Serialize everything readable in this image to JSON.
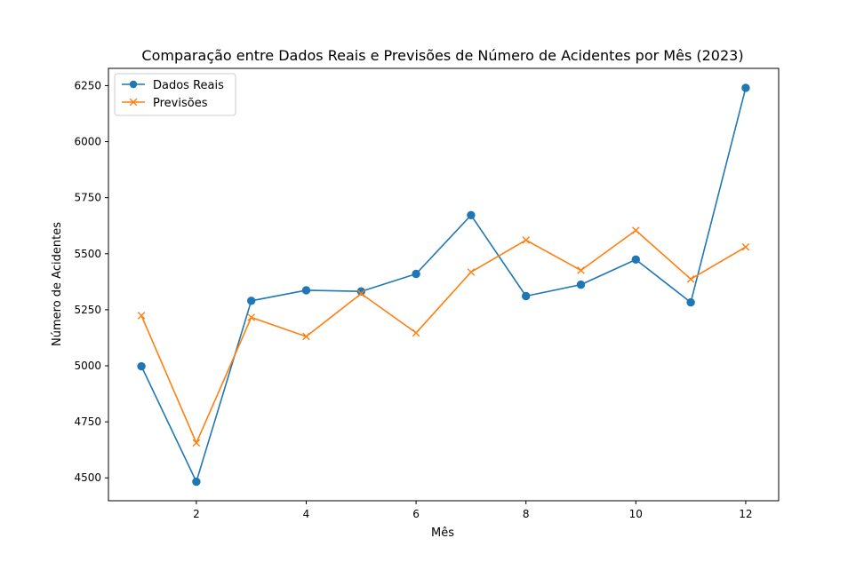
{
  "chart_data": {
    "type": "line",
    "title": "Comparação entre Dados Reais e Previsões de Número de Acidentes por Mês (2023)",
    "xlabel": "Mês",
    "ylabel": "Número de Acidentes",
    "x": [
      1,
      2,
      3,
      4,
      5,
      6,
      7,
      8,
      9,
      10,
      11,
      12
    ],
    "xlim": [
      0.4,
      12.6
    ],
    "ylim": [
      4398,
      6327
    ],
    "xticks": [
      2,
      4,
      6,
      8,
      10,
      12
    ],
    "yticks": [
      4500,
      4750,
      5000,
      5250,
      5500,
      5750,
      6000,
      6250
    ],
    "grid": false,
    "legend_position": "top-left",
    "series": [
      {
        "name": "Dados Reais",
        "color": "#1f77b4",
        "marker": "circle",
        "values": [
          4998,
          4483,
          5290,
          5337,
          5332,
          5410,
          5672,
          5311,
          5362,
          5474,
          5283,
          6240
        ]
      },
      {
        "name": "Previsões",
        "color": "#ff7f0e",
        "marker": "x",
        "values": [
          5224,
          4656,
          5216,
          5131,
          5322,
          5147,
          5418,
          5561,
          5426,
          5604,
          5387,
          5530
        ]
      }
    ]
  }
}
